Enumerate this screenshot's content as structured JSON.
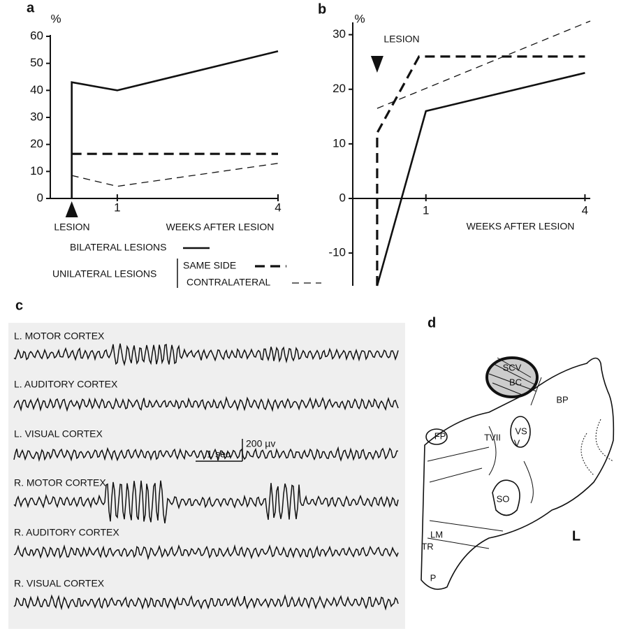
{
  "chart_data": [
    {
      "type": "line",
      "panel": "a",
      "y_unit": "%",
      "xlabel": "WEEKS AFTER LESION",
      "annotation": "LESION",
      "xlim": [
        -0.25,
        4
      ],
      "xticks": [
        1,
        4
      ],
      "ylim": [
        0,
        60
      ],
      "yticks": [
        0,
        10,
        20,
        30,
        40,
        50,
        60
      ],
      "legend_group": "UNILATERAL LESIONS",
      "series": [
        {
          "name": "BILATERAL LESIONS",
          "color": "#111111",
          "style": "solid",
          "x": [
            0.15,
            0.15,
            1,
            4
          ],
          "values": [
            0,
            43,
            40,
            54.5
          ]
        },
        {
          "name": "SAME SIDE",
          "color": "#111111",
          "style": "thick-dash",
          "x": [
            0.15,
            4
          ],
          "values": [
            16.5,
            16.5
          ]
        },
        {
          "name": "CONTRALATERAL",
          "color": "#111111",
          "style": "thin-dash",
          "x": [
            0.15,
            1,
            4
          ],
          "values": [
            8.5,
            4.5,
            13
          ]
        }
      ]
    },
    {
      "type": "line",
      "panel": "b",
      "y_unit": "%",
      "xlabel": "WEEKS AFTER LESION",
      "annotation": "LESION",
      "xlim": [
        -0.38,
        4.1
      ],
      "xticks": [
        1,
        4
      ],
      "ylim": [
        -16,
        32
      ],
      "yticks": [
        -10,
        0,
        10,
        20,
        30
      ],
      "series": [
        {
          "color": "#111111",
          "style": "solid",
          "x": [
            0.08,
            1,
            4
          ],
          "values": [
            -16,
            16,
            23
          ]
        },
        {
          "color": "#111111",
          "style": "thick-dash",
          "x": [
            0.08,
            0.08,
            0.87,
            4
          ],
          "values": [
            -16,
            12,
            26,
            26
          ]
        },
        {
          "color": "#111111",
          "style": "thin-dash",
          "x": [
            0.08,
            4.1
          ],
          "values": [
            16.5,
            32.5
          ]
        }
      ]
    }
  ],
  "panel_c": {
    "label": "c",
    "traces": [
      "L. MOTOR CORTEX",
      "L. AUDITORY CORTEX",
      "L. VISUAL CORTEX",
      "R. MOTOR CORTEX",
      "R. AUDITORY CORTEX",
      "R. VISUAL CORTEX"
    ],
    "time_scale": "1 sec",
    "amp_scale": "200 µv"
  },
  "panel_d": {
    "label": "d",
    "structures": [
      "SCV",
      "BC",
      "BP",
      "FP",
      "VS",
      "TVII",
      "V",
      "SO",
      "LM",
      "TR",
      "P",
      "L"
    ]
  }
}
